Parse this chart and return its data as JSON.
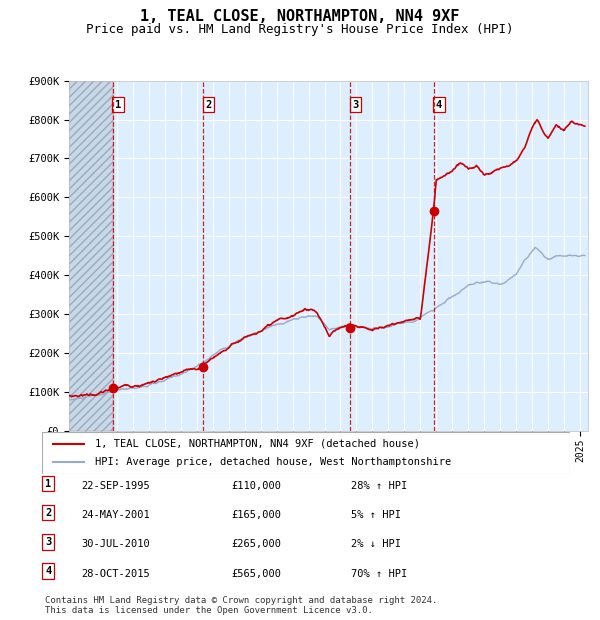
{
  "title": "1, TEAL CLOSE, NORTHAMPTON, NN4 9XF",
  "subtitle": "Price paid vs. HM Land Registry's House Price Index (HPI)",
  "title_fontsize": 11,
  "subtitle_fontsize": 9,
  "ylim": [
    0,
    900000
  ],
  "yticks": [
    0,
    100000,
    200000,
    300000,
    400000,
    500000,
    600000,
    700000,
    800000,
    900000
  ],
  "ytick_labels": [
    "£0",
    "£100K",
    "£200K",
    "£300K",
    "£400K",
    "£500K",
    "£600K",
    "£700K",
    "£800K",
    "£900K"
  ],
  "xlim_start": 1993.0,
  "xlim_end": 2025.5,
  "background_color": "#ffffff",
  "plot_bg_color": "#ddeeff",
  "hatch_bg_color": "#c8d8e8",
  "grid_color": "#ffffff",
  "sale_line_color": "#cc0000",
  "hpi_line_color": "#99aacc",
  "marker_color": "#cc0000",
  "vline_color": "#cc0000",
  "purchases": [
    {
      "label": "1",
      "date_decimal": 1995.73,
      "price": 110000
    },
    {
      "label": "2",
      "date_decimal": 2001.4,
      "price": 165000
    },
    {
      "label": "3",
      "date_decimal": 2010.58,
      "price": 265000
    },
    {
      "label": "4",
      "date_decimal": 2015.83,
      "price": 565000
    }
  ],
  "legend_entries": [
    {
      "label": "1, TEAL CLOSE, NORTHAMPTON, NN4 9XF (detached house)",
      "color": "#cc0000",
      "lw": 1.5
    },
    {
      "label": "HPI: Average price, detached house, West Northamptonshire",
      "color": "#99aacc",
      "lw": 1.5
    }
  ],
  "table_rows": [
    {
      "num": "1",
      "date": "22-SEP-1995",
      "price": "£110,000",
      "hpi": "28% ↑ HPI"
    },
    {
      "num": "2",
      "date": "24-MAY-2001",
      "price": "£165,000",
      "hpi": "5% ↑ HPI"
    },
    {
      "num": "3",
      "date": "30-JUL-2010",
      "price": "£265,000",
      "hpi": "2% ↓ HPI"
    },
    {
      "num": "4",
      "date": "28-OCT-2015",
      "price": "£565,000",
      "hpi": "70% ↑ HPI"
    }
  ],
  "footer": "Contains HM Land Registry data © Crown copyright and database right 2024.\nThis data is licensed under the Open Government Licence v3.0.",
  "hpi_keypoints": [
    [
      1993.0,
      80000
    ],
    [
      1995.0,
      90000
    ],
    [
      1997.0,
      105000
    ],
    [
      1999.0,
      120000
    ],
    [
      2001.0,
      155000
    ],
    [
      2002.5,
      200000
    ],
    [
      2004.0,
      235000
    ],
    [
      2005.5,
      255000
    ],
    [
      2007.5,
      275000
    ],
    [
      2008.5,
      280000
    ],
    [
      2009.3,
      245000
    ],
    [
      2010.0,
      255000
    ],
    [
      2011.0,
      255000
    ],
    [
      2012.0,
      250000
    ],
    [
      2013.0,
      255000
    ],
    [
      2014.0,
      265000
    ],
    [
      2015.0,
      285000
    ],
    [
      2016.0,
      310000
    ],
    [
      2017.0,
      340000
    ],
    [
      2018.0,
      360000
    ],
    [
      2019.0,
      365000
    ],
    [
      2020.0,
      360000
    ],
    [
      2021.0,
      390000
    ],
    [
      2022.2,
      460000
    ],
    [
      2023.0,
      430000
    ],
    [
      2024.0,
      440000
    ],
    [
      2025.3,
      445000
    ]
  ],
  "red_keypoints": [
    [
      1993.0,
      90000
    ],
    [
      1994.0,
      95000
    ],
    [
      1995.0,
      100000
    ],
    [
      1995.73,
      110000
    ],
    [
      1997.0,
      120000
    ],
    [
      1999.0,
      140000
    ],
    [
      2001.0,
      155000
    ],
    [
      2001.4,
      165000
    ],
    [
      2002.5,
      200000
    ],
    [
      2004.0,
      240000
    ],
    [
      2005.5,
      265000
    ],
    [
      2007.0,
      280000
    ],
    [
      2007.8,
      300000
    ],
    [
      2008.5,
      295000
    ],
    [
      2009.3,
      230000
    ],
    [
      2010.0,
      255000
    ],
    [
      2010.58,
      265000
    ],
    [
      2011.0,
      260000
    ],
    [
      2012.0,
      255000
    ],
    [
      2013.0,
      265000
    ],
    [
      2014.0,
      275000
    ],
    [
      2015.0,
      285000
    ],
    [
      2015.83,
      565000
    ],
    [
      2016.0,
      640000
    ],
    [
      2017.0,
      660000
    ],
    [
      2017.5,
      680000
    ],
    [
      2018.0,
      665000
    ],
    [
      2018.5,
      675000
    ],
    [
      2019.0,
      650000
    ],
    [
      2019.5,
      660000
    ],
    [
      2020.0,
      665000
    ],
    [
      2020.5,
      675000
    ],
    [
      2021.0,
      690000
    ],
    [
      2021.5,
      720000
    ],
    [
      2022.0,
      780000
    ],
    [
      2022.3,
      800000
    ],
    [
      2022.8,
      760000
    ],
    [
      2023.0,
      750000
    ],
    [
      2023.5,
      790000
    ],
    [
      2024.0,
      775000
    ],
    [
      2024.5,
      800000
    ],
    [
      2025.3,
      795000
    ]
  ]
}
